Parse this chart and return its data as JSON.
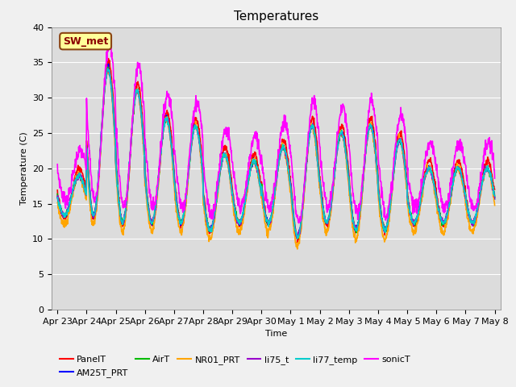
{
  "title": "Temperatures",
  "xlabel": "Time",
  "ylabel": "Temperature (C)",
  "ylim": [
    0,
    40
  ],
  "yticks": [
    0,
    5,
    10,
    15,
    20,
    25,
    30,
    35,
    40
  ],
  "xtick_labels": [
    "Apr 23",
    "Apr 24",
    "Apr 25",
    "Apr 26",
    "Apr 27",
    "Apr 28",
    "Apr 29",
    "Apr 30",
    "May 1",
    "May 2",
    "May 3",
    "May 4",
    "May 5",
    "May 6",
    "May 7",
    "May 8"
  ],
  "annotation_text": "SW_met",
  "annotation_bg": "#FFFF99",
  "annotation_border": "#8B4513",
  "series": [
    {
      "name": "PanelT",
      "color": "#FF0000",
      "lw": 1.2
    },
    {
      "name": "AM25T_PRT",
      "color": "#0000FF",
      "lw": 1.2
    },
    {
      "name": "AirT",
      "color": "#00BB00",
      "lw": 1.2
    },
    {
      "name": "NR01_PRT",
      "color": "#FFA500",
      "lw": 1.2
    },
    {
      "name": "li75_t",
      "color": "#9900CC",
      "lw": 1.2
    },
    {
      "name": "li77_temp",
      "color": "#00CCCC",
      "lw": 1.2
    },
    {
      "name": "sonicT",
      "color": "#FF00FF",
      "lw": 1.2
    }
  ],
  "bg_color": "#DCDCDC",
  "fig_color": "#F0F0F0",
  "title_fontsize": 11,
  "label_fontsize": 8,
  "tick_fontsize": 8,
  "legend_fontsize": 8,
  "peaks_base": [
    20,
    35,
    32,
    28,
    27,
    23,
    22,
    24,
    27,
    26,
    27,
    25,
    21,
    21,
    21
  ],
  "troughs_base": [
    13,
    13,
    12,
    12,
    12,
    11,
    12,
    12,
    10,
    12,
    11,
    11,
    12,
    12,
    12
  ],
  "series_params": {
    "PanelT": {
      "dpk": 0.0,
      "dtr": 0.0,
      "phase": 0.0,
      "noise": 0.25,
      "seed": 1
    },
    "AM25T_PRT": {
      "dpk": -1.0,
      "dtr": 0.3,
      "phase": 0.3,
      "noise": 0.2,
      "seed": 2
    },
    "AirT": {
      "dpk": -1.0,
      "dtr": 0.3,
      "phase": 0.2,
      "noise": 0.2,
      "seed": 3
    },
    "NR01_PRT": {
      "dpk": -1.0,
      "dtr": -1.0,
      "phase": 0.4,
      "noise": 0.3,
      "seed": 4
    },
    "li75_t": {
      "dpk": -1.0,
      "dtr": 0.3,
      "phase": 0.25,
      "noise": 0.2,
      "seed": 5
    },
    "li77_temp": {
      "dpk": -1.0,
      "dtr": 0.3,
      "phase": 0.3,
      "noise": 0.2,
      "seed": 6
    },
    "sonicT": {
      "dpk": 2.5,
      "dtr": 2.5,
      "phase": -0.8,
      "noise": 0.5,
      "seed": 7
    }
  }
}
